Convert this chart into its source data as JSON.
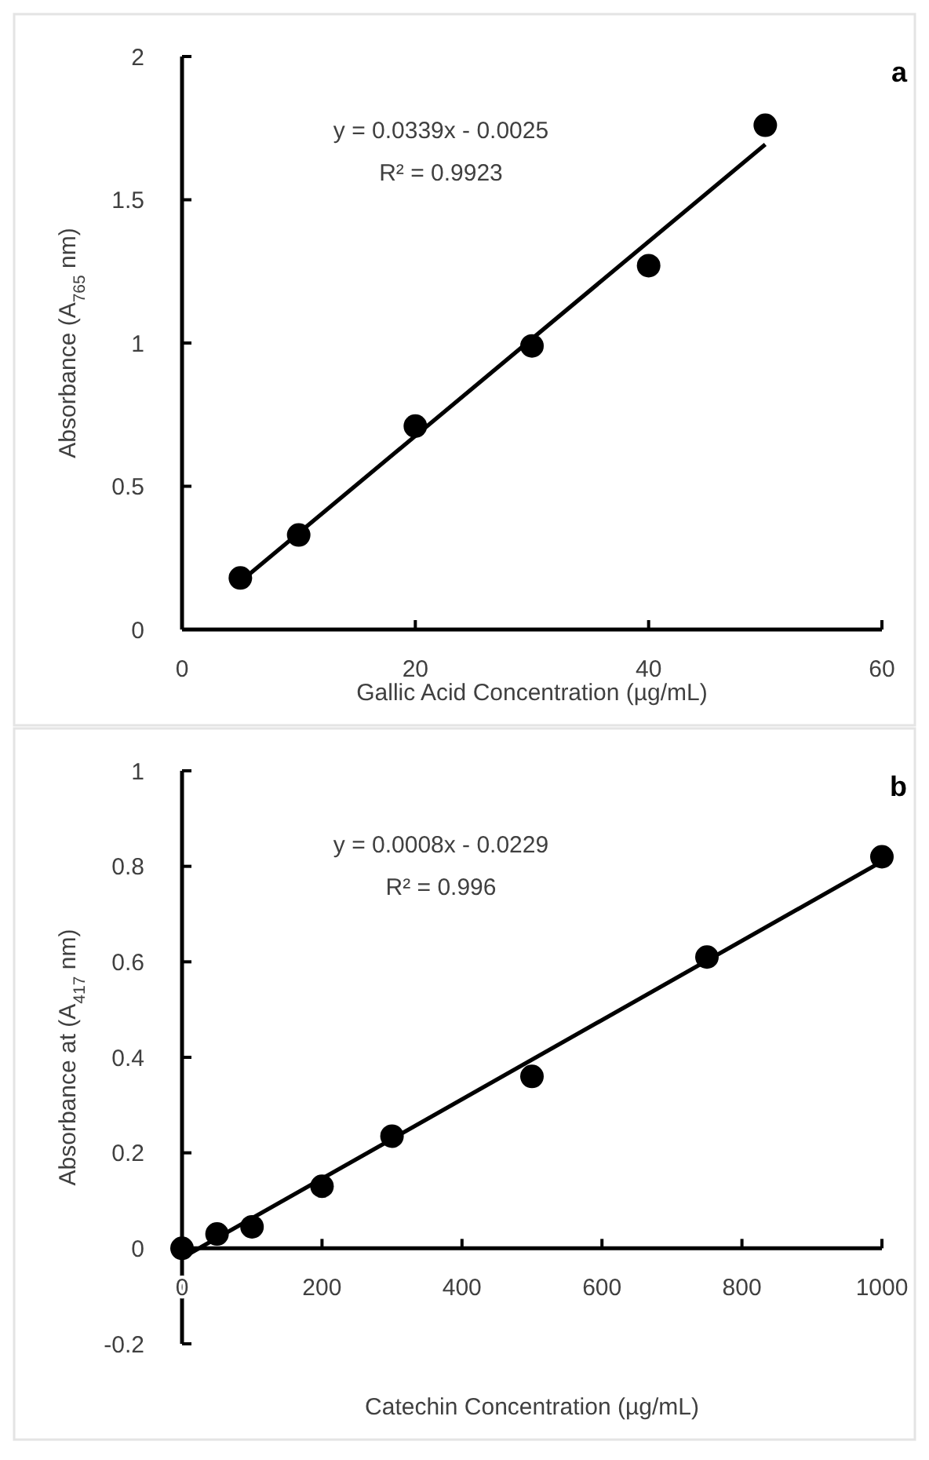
{
  "chart_data": [
    {
      "type": "scatter",
      "xlabel": "Gallic Acid Concentration (µg/mL)",
      "ylabel": "Absorbance (A$_{765}$ nm)",
      "xlim": [
        0,
        60
      ],
      "xticks": [
        0,
        20,
        40,
        60
      ],
      "ylim": [
        0,
        2
      ],
      "yticks": [
        0,
        0.5,
        1,
        1.5,
        2
      ],
      "annotations": [
        "a",
        "y = 0.0339x - 0.0025",
        "R² = 0.9923"
      ],
      "series": [
        {
          "color": "#000000",
          "marker": "circle",
          "x": [
            5,
            10,
            20,
            30,
            40,
            50
          ],
          "values": [
            0.18,
            0.33,
            0.71,
            0.99,
            1.27,
            1.76
          ]
        },
        {
          "type": "line",
          "color": "#000000",
          "x": [
            5,
            50
          ],
          "values": [
            0.167,
            1.693
          ]
        }
      ]
    },
    {
      "type": "scatter",
      "xlabel": "Catechin Concentration (µg/mL)",
      "ylabel": "Absorbance at (A$_{417}$ nm)",
      "xlim": [
        0,
        1000
      ],
      "xticks": [
        0,
        200,
        400,
        600,
        800,
        1000
      ],
      "ylim": [
        -0.2,
        1
      ],
      "yticks": [
        -0.2,
        0,
        0.2,
        0.4,
        0.6,
        0.8,
        1
      ],
      "annotations": [
        "b",
        "y = 0.0008x - 0.0229",
        "R² = 0.996"
      ],
      "series": [
        {
          "color": "#000000",
          "marker": "circle",
          "x": [
            0,
            50,
            100,
            200,
            300,
            500,
            750,
            1000
          ],
          "values": [
            0,
            0.03,
            0.045,
            0.13,
            0.235,
            0.36,
            0.61,
            0.82
          ]
        },
        {
          "type": "line",
          "color": "#000000",
          "x": [
            0,
            1000
          ],
          "values": [
            -0.02,
            0.81
          ]
        }
      ]
    }
  ]
}
